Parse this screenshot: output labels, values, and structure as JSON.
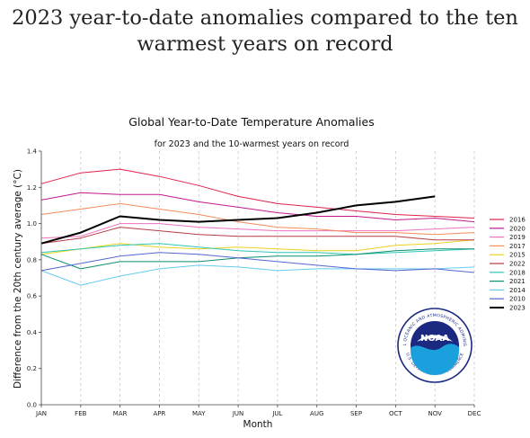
{
  "headline": {
    "line1": "2023 year-to-date anomalies compared to the ten",
    "line2": "warmest years on record"
  },
  "logo": {
    "text": "NOAA",
    "ring_text": "NATIONAL OCEANIC AND ATMOSPHERIC ADMINISTRATION",
    "ring_text_bottom": "U.S. DEPARTMENT OF COMMERCE"
  },
  "chart_data": {
    "type": "line",
    "title": "Global Year-to-Date Temperature Anomalies",
    "subtitle": "for 2023 and the 10-warmest years on record",
    "xlabel": "Month",
    "ylabel": "Difference from the 20th century average (°C)",
    "categories": [
      "JAN",
      "FEB",
      "MAR",
      "APR",
      "MAY",
      "JUN",
      "JUL",
      "AUG",
      "SEP",
      "OCT",
      "NOV",
      "DEC"
    ],
    "ylim": [
      0.0,
      1.4
    ],
    "yticks": [
      "0.0",
      "0.2",
      "0.4",
      "0.6",
      "0.8",
      "1.0",
      "1.2",
      "1.4"
    ],
    "grid": "vertical-dashed",
    "legend_position": "right",
    "series": [
      {
        "name": "2016",
        "color": "#e0204a",
        "width": 1,
        "values": [
          1.22,
          1.28,
          1.3,
          1.26,
          1.21,
          1.15,
          1.11,
          1.09,
          1.07,
          1.05,
          1.04,
          1.03
        ]
      },
      {
        "name": "2020",
        "color": "#c2188f",
        "width": 1,
        "values": [
          1.13,
          1.17,
          1.16,
          1.16,
          1.12,
          1.09,
          1.06,
          1.04,
          1.04,
          1.02,
          1.03,
          1.01
        ]
      },
      {
        "name": "2019",
        "color": "#ee70c0",
        "width": 1,
        "values": [
          0.92,
          0.93,
          1.0,
          1.0,
          0.98,
          0.97,
          0.96,
          0.96,
          0.96,
          0.96,
          0.97,
          0.98
        ]
      },
      {
        "name": "2017",
        "color": "#f58c5a",
        "width": 1,
        "values": [
          1.05,
          1.08,
          1.11,
          1.08,
          1.05,
          1.01,
          0.98,
          0.97,
          0.95,
          0.95,
          0.94,
          0.95
        ]
      },
      {
        "name": "2015",
        "color": "#ecd21c",
        "width": 1,
        "values": [
          0.83,
          0.86,
          0.89,
          0.87,
          0.86,
          0.87,
          0.86,
          0.85,
          0.85,
          0.88,
          0.89,
          0.91
        ]
      },
      {
        "name": "2022",
        "color": "#b53b46",
        "width": 1,
        "values": [
          0.89,
          0.92,
          0.98,
          0.96,
          0.94,
          0.93,
          0.93,
          0.93,
          0.93,
          0.93,
          0.91,
          0.91
        ]
      },
      {
        "name": "2018",
        "color": "#2ec6b5",
        "width": 1,
        "values": [
          0.84,
          0.86,
          0.88,
          0.89,
          0.87,
          0.85,
          0.84,
          0.84,
          0.83,
          0.84,
          0.85,
          0.86
        ]
      },
      {
        "name": "2021",
        "color": "#0a8f6f",
        "width": 1,
        "values": [
          0.83,
          0.75,
          0.79,
          0.79,
          0.79,
          0.81,
          0.82,
          0.82,
          0.83,
          0.85,
          0.86,
          0.86
        ]
      },
      {
        "name": "2014",
        "color": "#66ccef",
        "width": 1,
        "values": [
          0.74,
          0.66,
          0.71,
          0.75,
          0.77,
          0.76,
          0.74,
          0.75,
          0.75,
          0.75,
          0.75,
          0.76
        ]
      },
      {
        "name": "2010",
        "color": "#5565d2",
        "width": 1,
        "values": [
          0.74,
          0.78,
          0.82,
          0.84,
          0.83,
          0.81,
          0.79,
          0.77,
          0.75,
          0.74,
          0.75,
          0.73
        ]
      },
      {
        "name": "2023",
        "color": "#000000",
        "width": 2,
        "values": [
          0.89,
          0.95,
          1.04,
          1.02,
          1.01,
          1.02,
          1.03,
          1.06,
          1.1,
          1.12,
          1.15,
          null
        ]
      }
    ]
  }
}
